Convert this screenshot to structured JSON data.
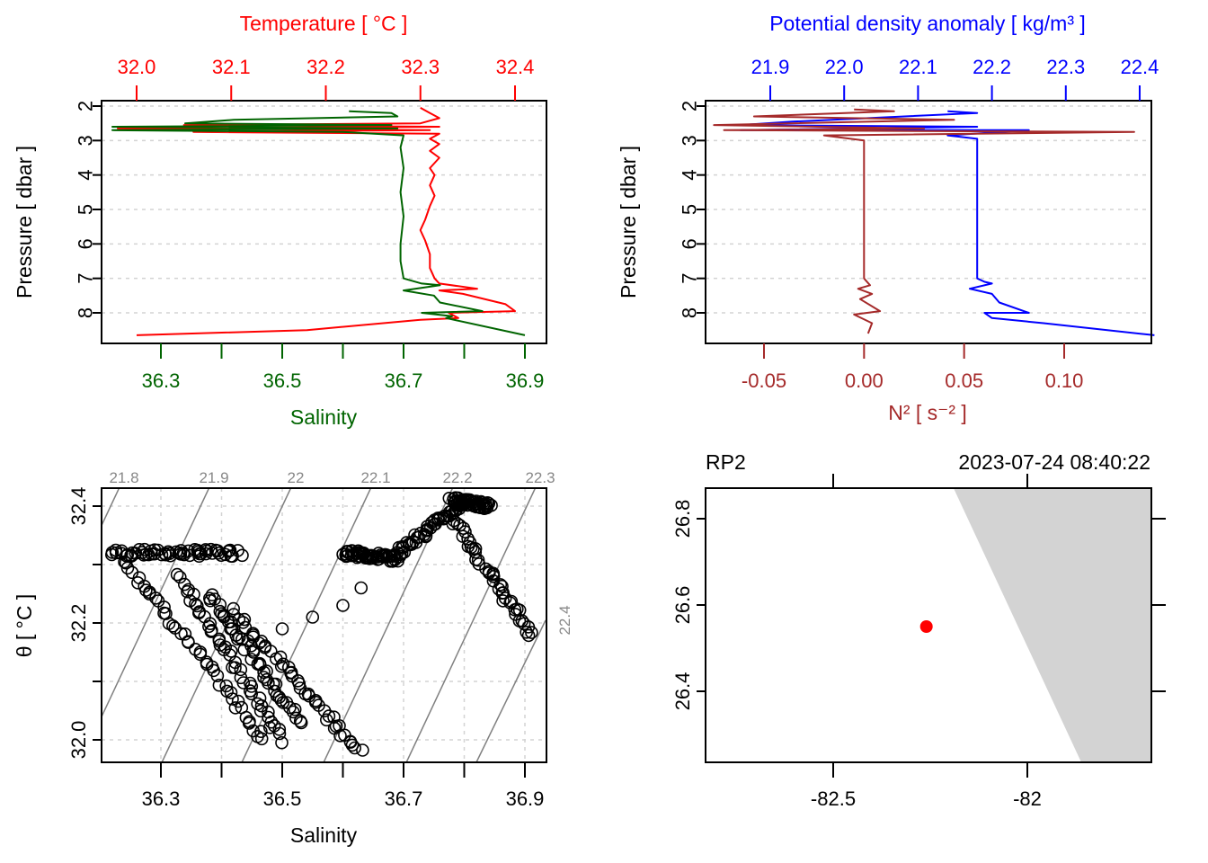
{
  "colors": {
    "temperature": "#ff0000",
    "salinity": "#006400",
    "density": "#0000ff",
    "n2": "#a52a2a",
    "axis": "#000000",
    "grid": "#d3d3d3",
    "isopycnal": "#808080",
    "land": "#d3d3d3",
    "station": "#ff0000"
  },
  "chart_data": [
    {
      "id": "profile-ts",
      "type": "line",
      "title": "",
      "ylabel": "Pressure [ dbar ]",
      "ylim": [
        8.9,
        1.85
      ],
      "y_ticks": [
        "2",
        "3",
        "4",
        "5",
        "6",
        "7",
        "8"
      ],
      "grid": true,
      "top_axis": {
        "label": "Temperature [ °C ]",
        "ticks": [
          "32.0",
          "32.1",
          "32.2",
          "32.3",
          "32.4"
        ],
        "range": [
          31.963,
          32.434
        ]
      },
      "bottom_axis": {
        "label": "Salinity",
        "ticks": [
          "36.3",
          "36.5",
          "36.7",
          "36.9"
        ],
        "minor_ticks": [
          "36.4",
          "36.6",
          "36.8"
        ],
        "range": [
          36.2,
          36.935
        ]
      },
      "series": [
        {
          "name": "Temperature",
          "axis": "top",
          "points": [
            [
              32.3,
              2.05
            ],
            [
              32.31,
              2.2
            ],
            [
              32.32,
              2.35
            ],
            [
              32.3,
              2.5
            ],
            [
              32.05,
              2.55
            ],
            [
              32.32,
              2.6
            ],
            [
              31.98,
              2.65
            ],
            [
              32.31,
              2.7
            ],
            [
              32.06,
              2.75
            ],
            [
              32.32,
              2.8
            ],
            [
              32.31,
              2.95
            ],
            [
              32.32,
              3.1
            ],
            [
              32.31,
              3.3
            ],
            [
              32.32,
              3.5
            ],
            [
              32.31,
              3.8
            ],
            [
              32.315,
              4.0
            ],
            [
              32.31,
              4.3
            ],
            [
              32.315,
              4.6
            ],
            [
              32.31,
              4.9
            ],
            [
              32.305,
              5.3
            ],
            [
              32.3,
              5.6
            ],
            [
              32.305,
              5.9
            ],
            [
              32.31,
              6.3
            ],
            [
              32.31,
              6.7
            ],
            [
              32.315,
              7.0
            ],
            [
              32.32,
              7.15
            ],
            [
              32.36,
              7.3
            ],
            [
              32.32,
              7.35
            ],
            [
              32.345,
              7.45
            ],
            [
              32.39,
              7.75
            ],
            [
              32.4,
              7.95
            ],
            [
              32.33,
              8.0
            ],
            [
              32.34,
              8.15
            ],
            [
              32.3,
              8.2
            ],
            [
              32.18,
              8.5
            ],
            [
              32.0,
              8.65
            ]
          ]
        },
        {
          "name": "Salinity",
          "axis": "bottom",
          "points": [
            [
              36.61,
              2.15
            ],
            [
              36.68,
              2.2
            ],
            [
              36.69,
              2.3
            ],
            [
              36.42,
              2.4
            ],
            [
              36.34,
              2.5
            ],
            [
              36.68,
              2.55
            ],
            [
              36.22,
              2.6
            ],
            [
              36.69,
              2.65
            ],
            [
              36.22,
              2.7
            ],
            [
              36.6,
              2.75
            ],
            [
              36.7,
              2.85
            ],
            [
              36.695,
              3.2
            ],
            [
              36.7,
              3.8
            ],
            [
              36.695,
              4.5
            ],
            [
              36.7,
              5.2
            ],
            [
              36.695,
              6.0
            ],
            [
              36.695,
              6.5
            ],
            [
              36.7,
              7.0
            ],
            [
              36.73,
              7.15
            ],
            [
              36.76,
              7.2
            ],
            [
              36.7,
              7.35
            ],
            [
              36.75,
              7.5
            ],
            [
              36.76,
              7.7
            ],
            [
              36.83,
              7.95
            ],
            [
              36.73,
              8.0
            ],
            [
              36.78,
              8.1
            ],
            [
              36.77,
              8.15
            ],
            [
              36.9,
              8.65
            ]
          ]
        }
      ]
    },
    {
      "id": "profile-density",
      "type": "line",
      "title": "",
      "ylabel": "Pressure [ dbar ]",
      "ylim": [
        8.9,
        1.85
      ],
      "y_ticks": [
        "2",
        "3",
        "4",
        "5",
        "6",
        "7",
        "8"
      ],
      "grid": true,
      "top_axis": {
        "label": "Potential density anomaly [ kg/m³ ]",
        "ticks": [
          "21.9",
          "22.0",
          "22.1",
          "22.2",
          "22.3",
          "22.4"
        ],
        "range": [
          21.836,
          22.439
        ]
      },
      "bottom_axis": {
        "label": "N² [ s⁻² ]",
        "ticks": [
          "-0.05",
          "0.00",
          "0.05",
          "0.10"
        ],
        "range": [
          -0.0798,
          0.1429
        ]
      },
      "series": [
        {
          "name": "Potential density anomaly",
          "axis": "top",
          "points": [
            [
              22.14,
              2.15
            ],
            [
              22.18,
              2.2
            ],
            [
              21.93,
              2.45
            ],
            [
              21.86,
              2.55
            ],
            [
              22.18,
              2.6
            ],
            [
              21.86,
              2.7
            ],
            [
              22.25,
              2.7
            ],
            [
              22.14,
              2.85
            ],
            [
              22.18,
              2.95
            ],
            [
              22.18,
              3.5
            ],
            [
              22.18,
              4.5
            ],
            [
              22.18,
              5.5
            ],
            [
              22.18,
              6.5
            ],
            [
              22.18,
              7.0
            ],
            [
              22.19,
              7.1
            ],
            [
              22.2,
              7.15
            ],
            [
              22.17,
              7.3
            ],
            [
              22.2,
              7.45
            ],
            [
              22.21,
              7.7
            ],
            [
              22.25,
              8.0
            ],
            [
              22.19,
              8.0
            ],
            [
              22.2,
              8.15
            ],
            [
              22.27,
              8.3
            ],
            [
              22.42,
              8.65
            ]
          ]
        },
        {
          "name": "N2",
          "axis": "bottom",
          "points": [
            [
              -0.005,
              2.1
            ],
            [
              0.015,
              2.15
            ],
            [
              -0.055,
              2.3
            ],
            [
              0.045,
              2.4
            ],
            [
              -0.075,
              2.55
            ],
            [
              0.03,
              2.65
            ],
            [
              -0.07,
              2.7
            ],
            [
              0.135,
              2.75
            ],
            [
              -0.02,
              2.85
            ],
            [
              0.0,
              3.0
            ],
            [
              0.0,
              4.0
            ],
            [
              0.0,
              5.0
            ],
            [
              0.0,
              6.0
            ],
            [
              0.0,
              7.0
            ],
            [
              0.003,
              7.2
            ],
            [
              -0.003,
              7.3
            ],
            [
              0.004,
              7.45
            ],
            [
              -0.002,
              7.6
            ],
            [
              0.008,
              7.95
            ],
            [
              -0.005,
              8.05
            ],
            [
              0.004,
              8.3
            ],
            [
              0.002,
              8.6
            ]
          ]
        }
      ]
    },
    {
      "id": "ts-diagram",
      "type": "scatter",
      "title": "",
      "xlabel": "Salinity",
      "ylabel": "θ [ °C ]",
      "xlim": [
        36.2,
        36.935
      ],
      "ylim": [
        31.963,
        32.432
      ],
      "x_ticks": [
        "36.3",
        "36.5",
        "36.7",
        "36.9"
      ],
      "x_minor_ticks": [
        "36.4",
        "36.6",
        "36.8"
      ],
      "y_ticks": [
        "32.0",
        "32.2",
        "32.4"
      ],
      "y_minor_ticks": [
        "32.1",
        "32.3"
      ],
      "grid": true,
      "isopycnal_labels": [
        "21.8",
        "21.9",
        "22",
        "22.1",
        "22.2",
        "22.3",
        "22.4"
      ],
      "marker": "open-circle",
      "clusters": [
        {
          "name": "upper-left plateau",
          "from": [
            36.22,
            32.32
          ],
          "to": [
            36.43,
            32.32
          ]
        },
        {
          "name": "descending streak 1",
          "from": [
            36.24,
            32.31
          ],
          "to": [
            36.47,
            32.0
          ]
        },
        {
          "name": "descending streak 2",
          "from": [
            36.33,
            32.28
          ],
          "to": [
            36.5,
            32.0
          ]
        },
        {
          "name": "descending streak 3",
          "from": [
            36.38,
            32.25
          ],
          "to": [
            36.53,
            32.03
          ]
        },
        {
          "name": "descending streak 4",
          "from": [
            36.42,
            32.22
          ],
          "to": [
            36.63,
            31.98
          ]
        },
        {
          "name": "mid plateau",
          "from": [
            36.6,
            32.32
          ],
          "to": [
            36.69,
            32.31
          ]
        },
        {
          "name": "rise to peak",
          "from": [
            36.69,
            32.32
          ],
          "to": [
            36.79,
            32.4
          ]
        },
        {
          "name": "peak cap",
          "from": [
            36.78,
            32.41
          ],
          "to": [
            36.84,
            32.4
          ]
        },
        {
          "name": "descending limb",
          "from": [
            36.78,
            32.38
          ],
          "to": [
            36.91,
            32.18
          ]
        }
      ],
      "isolated_points": [
        [
          36.5,
          32.19
        ],
        [
          36.55,
          32.21
        ],
        [
          36.6,
          32.23
        ],
        [
          36.63,
          32.26
        ]
      ]
    },
    {
      "id": "station-map",
      "type": "scatter",
      "title": "RP2",
      "subtitle": "2023-07-24 08:40:22",
      "xlabel": "",
      "ylabel": "",
      "xlim": [
        -82.84,
        -81.69
      ],
      "ylim": [
        26.228,
        26.87
      ],
      "x_ticks": [
        "-82.5",
        "-82"
      ],
      "y_ticks": [
        "26.4",
        "26.6",
        "26.8"
      ],
      "station": {
        "name": "RP2",
        "lon": -82.26,
        "lat": 26.55
      },
      "coastline": [
        [
          -82.19,
          26.87
        ],
        [
          -81.86,
          26.228
        ]
      ]
    }
  ]
}
